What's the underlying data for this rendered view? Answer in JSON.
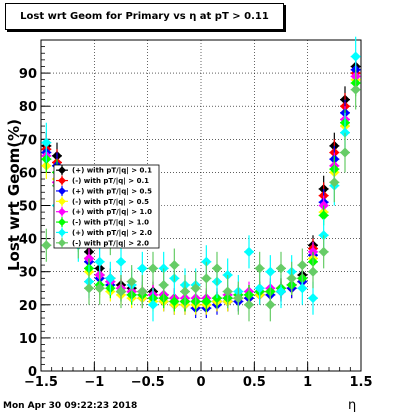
{
  "chart_data": {
    "type": "scatter",
    "title": "Lost wrt Geom for Primary vs   η at pT > 0.11",
    "xlabel": "η",
    "ylabel": "Lost wrt Geom(%)",
    "xlim": [
      -1.5,
      1.5
    ],
    "ylim": [
      0,
      100
    ],
    "x_ticks": [
      -1.5,
      -1,
      -0.5,
      0,
      0.5,
      1,
      1.5
    ],
    "x_tick_labels": [
      "−1.5",
      "−1",
      "−0.5",
      "0",
      "0.5",
      "1",
      "1.5"
    ],
    "y_ticks": [
      0,
      10,
      20,
      30,
      40,
      50,
      60,
      70,
      80,
      90
    ],
    "y_tick_labels": [
      "0",
      "10",
      "20",
      "30",
      "40",
      "50",
      "60",
      "70",
      "80",
      "90"
    ],
    "grid": true,
    "legend_position": "middle-left",
    "series": [
      {
        "name": "(+) with pT/|q| > 0.1",
        "color": "#000000",
        "x": [
          -1.45,
          -1.35,
          -1.25,
          -1.15,
          -1.05,
          -0.95,
          -0.85,
          -0.75,
          -0.65,
          -0.55,
          -0.45,
          -0.35,
          -0.25,
          -0.15,
          -0.05,
          0.05,
          0.15,
          0.25,
          0.35,
          0.45,
          0.55,
          0.65,
          0.75,
          0.85,
          0.95,
          1.05,
          1.15,
          1.25,
          1.35,
          1.45
        ],
        "y": [
          68,
          65,
          55,
          44,
          36,
          31,
          28,
          26,
          25,
          24,
          24,
          23,
          22,
          21,
          21,
          21,
          21,
          22,
          22,
          23,
          24,
          24,
          25,
          26,
          29,
          38,
          55,
          68,
          82,
          92
        ]
      },
      {
        "name": "(-) with pT/|q| > 0.1",
        "color": "#ff0000",
        "x": [
          -1.45,
          -1.35,
          -1.25,
          -1.15,
          -1.05,
          -0.95,
          -0.85,
          -0.75,
          -0.65,
          -0.55,
          -0.45,
          -0.35,
          -0.25,
          -0.15,
          -0.05,
          0.05,
          0.15,
          0.25,
          0.35,
          0.45,
          0.55,
          0.65,
          0.75,
          0.85,
          0.95,
          1.05,
          1.15,
          1.25,
          1.35,
          1.45
        ],
        "y": [
          67,
          63,
          53,
          42,
          34,
          29,
          27,
          25,
          24,
          23,
          23,
          22,
          21,
          21,
          20,
          20,
          21,
          21,
          22,
          22,
          23,
          24,
          24,
          25,
          27,
          37,
          53,
          66,
          80,
          90
        ]
      },
      {
        "name": "(+) with pT/|q| > 0.5",
        "color": "#0000ff",
        "x": [
          -1.45,
          -1.35,
          -1.25,
          -1.15,
          -1.05,
          -0.95,
          -0.85,
          -0.75,
          -0.65,
          -0.55,
          -0.45,
          -0.35,
          -0.25,
          -0.15,
          -0.05,
          0.05,
          0.15,
          0.25,
          0.35,
          0.45,
          0.55,
          0.65,
          0.75,
          0.85,
          0.95,
          1.05,
          1.15,
          1.25,
          1.35,
          1.45
        ],
        "y": [
          66,
          62,
          52,
          41,
          33,
          28,
          26,
          24,
          23,
          22,
          22,
          21,
          20,
          20,
          19,
          19,
          20,
          21,
          21,
          22,
          23,
          23,
          24,
          25,
          27,
          35,
          51,
          64,
          78,
          91
        ]
      },
      {
        "name": "(-) with pT/|q| > 0.5",
        "color": "#ffff00",
        "x": [
          -1.45,
          -1.35,
          -1.25,
          -1.15,
          -1.05,
          -0.95,
          -0.85,
          -0.75,
          -0.65,
          -0.55,
          -0.45,
          -0.35,
          -0.25,
          -0.15,
          -0.05,
          0.05,
          0.15,
          0.25,
          0.35,
          0.45,
          0.55,
          0.65,
          0.75,
          0.85,
          0.95,
          1.05,
          1.15,
          1.25,
          1.35,
          1.45
        ],
        "y": [
          62,
          58,
          49,
          39,
          30,
          25,
          24,
          23,
          22,
          22,
          21,
          21,
          20,
          20,
          20,
          20,
          21,
          21,
          22,
          23,
          23,
          24,
          25,
          26,
          28,
          34,
          48,
          60,
          74,
          88
        ]
      },
      {
        "name": "(+) with pT/|q| > 1.0",
        "color": "#ff00ff",
        "x": [
          -1.45,
          -1.35,
          -1.25,
          -1.15,
          -1.05,
          -0.95,
          -0.85,
          -0.75,
          -0.65,
          -0.55,
          -0.45,
          -0.35,
          -0.25,
          -0.15,
          -0.05,
          0.05,
          0.15,
          0.25,
          0.35,
          0.45,
          0.55,
          0.65,
          0.75,
          0.85,
          0.95,
          1.05,
          1.15,
          1.25,
          1.35,
          1.45
        ],
        "y": [
          65,
          57,
          46,
          40,
          34,
          29,
          27,
          25,
          24,
          24,
          23,
          23,
          22,
          22,
          22,
          22,
          22,
          23,
          23,
          24,
          24,
          25,
          25,
          26,
          28,
          36,
          50,
          62,
          76,
          89
        ]
      },
      {
        "name": "(-) with pT/|q| > 1.0",
        "color": "#00ff00",
        "x": [
          -1.45,
          -1.35,
          -1.25,
          -1.15,
          -1.05,
          -0.95,
          -0.85,
          -0.75,
          -0.65,
          -0.55,
          -0.45,
          -0.35,
          -0.25,
          -0.15,
          -0.05,
          0.05,
          0.15,
          0.25,
          0.35,
          0.45,
          0.55,
          0.65,
          0.75,
          0.85,
          0.95,
          1.05,
          1.15,
          1.25,
          1.35,
          1.45
        ],
        "y": [
          64,
          60,
          50,
          39,
          31,
          26,
          25,
          24,
          23,
          23,
          22,
          22,
          21,
          21,
          21,
          21,
          22,
          22,
          23,
          23,
          24,
          24,
          25,
          26,
          28,
          33,
          47,
          61,
          75,
          87
        ]
      },
      {
        "name": "(+) with pT/|q| > 2.0",
        "color": "#00ffff",
        "x": [
          -1.45,
          -1.35,
          -1.25,
          -1.15,
          -1.05,
          -0.95,
          -0.85,
          -0.75,
          -0.65,
          -0.55,
          -0.45,
          -0.35,
          -0.25,
          -0.15,
          -0.05,
          0.05,
          0.15,
          0.25,
          0.35,
          0.45,
          0.55,
          0.65,
          0.75,
          0.85,
          0.95,
          1.05,
          1.15,
          1.25,
          1.35,
          1.45
        ],
        "y": [
          69,
          50,
          46,
          38,
          27,
          33,
          28,
          33,
          26,
          31,
          20,
          31,
          28,
          26,
          26,
          33,
          27,
          29,
          24,
          36,
          25,
          30,
          24,
          30,
          25,
          22,
          41,
          56,
          72,
          95
        ]
      },
      {
        "name": "(-) with pT/|q| > 2.0",
        "color": "#66cc66",
        "x": [
          -1.45,
          -1.35,
          -1.25,
          -1.15,
          -1.05,
          -0.95,
          -0.85,
          -0.75,
          -0.65,
          -0.55,
          -0.45,
          -0.35,
          -0.25,
          -0.15,
          -0.05,
          0.05,
          0.15,
          0.25,
          0.35,
          0.45,
          0.55,
          0.65,
          0.75,
          0.85,
          0.95,
          1.05,
          1.15,
          1.25,
          1.35,
          1.45
        ],
        "y": [
          38,
          56,
          44,
          39,
          25,
          25,
          40,
          24,
          27,
          24,
          31,
          26,
          32,
          24,
          25,
          28,
          31,
          24,
          22,
          20,
          31,
          20,
          31,
          28,
          32,
          30,
          36,
          57,
          66,
          85
        ]
      }
    ]
  },
  "footer": {
    "datestamp": "Mon Apr 30 09:22:23 2018"
  }
}
